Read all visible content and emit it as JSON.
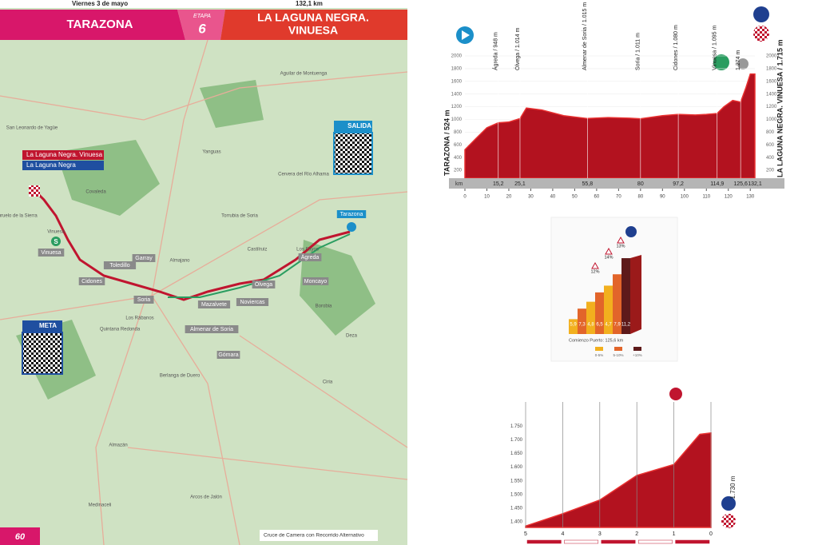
{
  "header": {
    "date": "Viernes 3 de mayo",
    "distance": "132,1 km",
    "start": "TARAZONA",
    "stage_word": "ETAPA",
    "stage_number": "6",
    "finish_lines": [
      "LA LAGUNA NEGRA.",
      "VINUESA"
    ]
  },
  "map": {
    "legend": [
      "La Laguna Negra. Vinuesa",
      "La Laguna Negra"
    ],
    "start_qr": "SALIDA",
    "finish_qr": "META",
    "towns": [
      "Tarazona",
      "Ágreda",
      "Ólvega",
      "Noviercas",
      "Mazalvete",
      "Almenar de Soria",
      "Soria",
      "Cidones",
      "Vinuesa",
      "Toledillo",
      "Moncayo",
      "Gómara",
      "Borobia",
      "Almazán",
      "Medinaceli",
      "Arcos de Jalón",
      "Garray",
      "Almajano",
      "Castilruiz",
      "Los Rábanos",
      "Quintana Redonda",
      "Vinuesa",
      "Los Fayos",
      "Duruelo de la Sierra",
      "Covaleda",
      "San Leonardo de Yagüe",
      "Aguilar de Montuenga",
      "Deza",
      "Ciria",
      "Berlanga de Duero",
      "Cervera del Río Alhama",
      "Yanguas",
      "Torrubia de Soria"
    ],
    "sprint": "S",
    "page_number": "60",
    "footnote": "Cruce de Camera con Recorrido Alternativo"
  },
  "profile": {
    "km": [
      0,
      5,
      10,
      15.2,
      20,
      25.1,
      28,
      35,
      45,
      55.8,
      65,
      75,
      80,
      90,
      97.2,
      105,
      110,
      114.9,
      118,
      122,
      125.6,
      128,
      130,
      132.1
    ],
    "alt": [
      524,
      700,
      870,
      948,
      960,
      1014,
      1180,
      1150,
      1060,
      1015,
      1030,
      1020,
      1011,
      1060,
      1080,
      1070,
      1080,
      1095,
      1200,
      1300,
      1274,
      1500,
      1715,
      1715
    ],
    "yticks": [
      200,
      400,
      600,
      800,
      1000,
      1200,
      1400,
      1600,
      1800,
      2000
    ],
    "xticks": [
      0,
      10,
      20,
      30,
      40,
      50,
      60,
      70,
      80,
      90,
      100,
      110,
      120,
      130
    ],
    "xlim": [
      0,
      132.1
    ],
    "ylim": [
      0,
      2000
    ],
    "km_word": "km",
    "km_marks": [
      {
        "value": 15.2,
        "label": "15,2"
      },
      {
        "value": 25.1,
        "label": "25,1"
      },
      {
        "value": 55.8,
        "label": "55,8"
      },
      {
        "value": 80,
        "label": "80"
      },
      {
        "value": 97.2,
        "label": "97,2"
      },
      {
        "value": 114.9,
        "label": "114,9"
      },
      {
        "value": 125.6,
        "label": "125,6"
      },
      {
        "value": 132.1,
        "label": "132,1"
      }
    ],
    "waypoints": [
      {
        "label": "Ágreda / 948 m",
        "km": 15.2
      },
      {
        "label": "Ólvega / 1.014 m",
        "km": 25.1
      },
      {
        "label": "Almenar de Soria / 1.015 m",
        "km": 55.8
      },
      {
        "label": "Soria / 1.011 m",
        "km": 80
      },
      {
        "label": "Cidones / 1.080 m",
        "km": 97.2
      },
      {
        "label": "Vinuesa / 1.095 m",
        "km": 114.9
      },
      {
        "label": "1.274 m",
        "km": 125.6
      }
    ],
    "start_label": "TARAZONA / 524 m",
    "finish_label": "LA LAGUNA NEGRA. VINUESA / 1.715 m"
  },
  "climb": {
    "grades": [
      5.9,
      7.3,
      4.8,
      6.5,
      4.7,
      7.9,
      11.2
    ],
    "grade_labels": [
      "5,9",
      "7,3",
      "4,8",
      "6,5",
      "4,7",
      "7,9",
      "11,2"
    ],
    "peaks": [
      "12%",
      "14%",
      "13%"
    ],
    "start_note": "Comienzo Puerto: 125,6 km",
    "legend": [
      "0-5%",
      "5-10%",
      "+10%"
    ]
  },
  "finish": {
    "km": [
      5,
      4,
      3,
      2,
      1,
      0.3,
      0
    ],
    "alt": [
      1385,
      1430,
      1480,
      1570,
      1610,
      1720,
      1725
    ],
    "xlim": [
      5,
      0
    ],
    "ylim": [
      1380,
      1760
    ],
    "yticks": [
      {
        "value": 1400,
        "label": "1.400"
      },
      {
        "value": 1450,
        "label": "1.450"
      },
      {
        "value": 1500,
        "label": "1.500"
      },
      {
        "value": 1550,
        "label": "1.550"
      },
      {
        "value": 1600,
        "label": "1.600"
      },
      {
        "value": 1650,
        "label": "1.650"
      },
      {
        "value": 1700,
        "label": "1.700"
      },
      {
        "value": 1750,
        "label": "1.750"
      }
    ],
    "xticks": [
      5,
      4,
      3,
      2,
      1,
      0
    ],
    "altitude_label": "1.730 m"
  }
}
